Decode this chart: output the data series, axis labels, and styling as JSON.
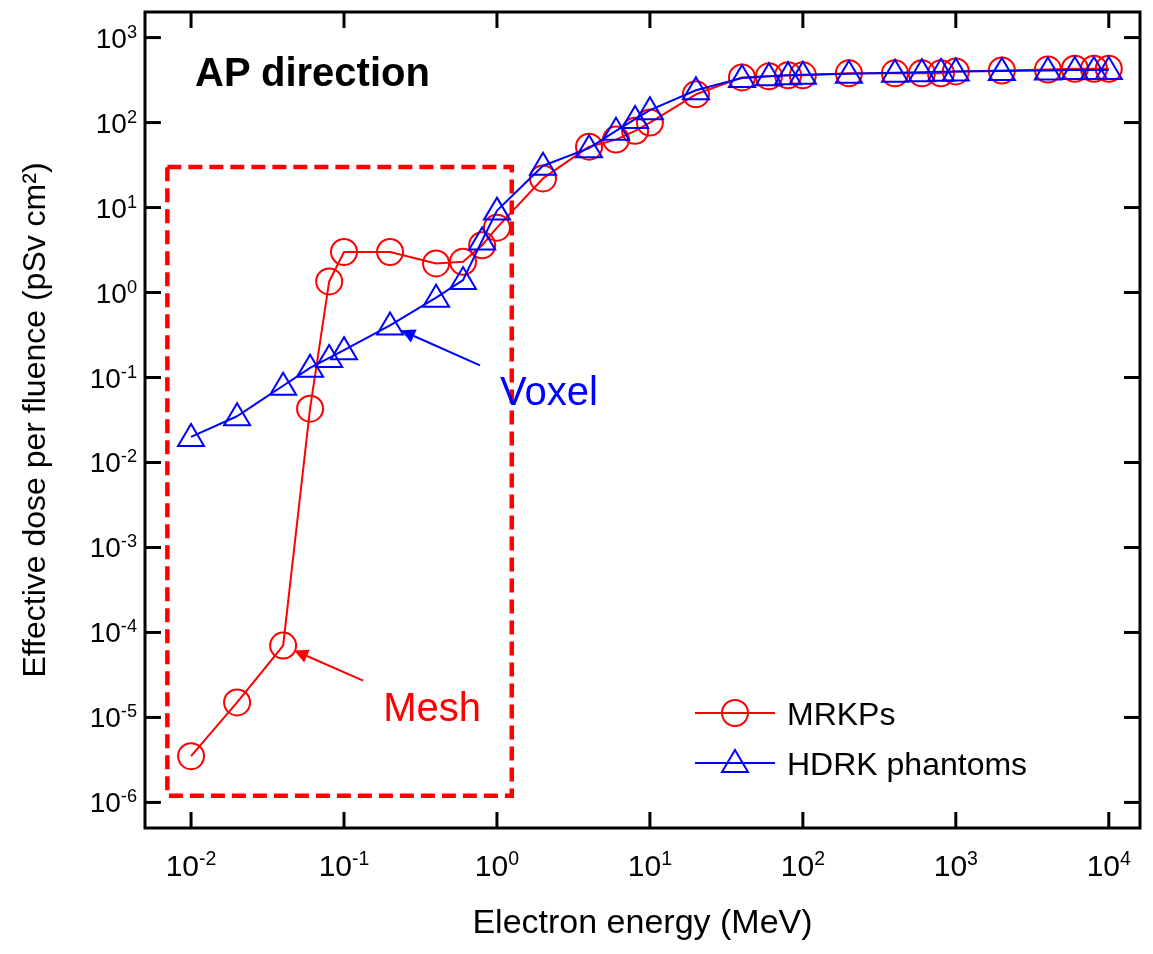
{
  "chart_data": {
    "type": "line",
    "title": "AP direction",
    "xlabel": "Electron energy (MeV)",
    "ylabel": "Effective dose per fluence (pSv cm²)",
    "log": "xy",
    "xlim": [
      0.005,
      16000
    ],
    "ylim": [
      5e-07,
      2000
    ],
    "xticks": [
      {
        "value": 0.01,
        "label": "10$^{-2}$"
      },
      {
        "value": 0.1,
        "label": "10$^{-1}$"
      },
      {
        "value": 1,
        "label": "10$^{0}$"
      },
      {
        "value": 10,
        "label": "10$^{1}$"
      },
      {
        "value": 100,
        "label": "10$^{2}$"
      },
      {
        "value": 1000,
        "label": "10$^{3}$"
      },
      {
        "value": 10000,
        "label": "10$^{4}$"
      }
    ],
    "yticks": [
      {
        "value": 1e-06,
        "label": "10$^{-6}$"
      },
      {
        "value": 1e-05,
        "label": "10$^{-5}$"
      },
      {
        "value": 0.0001,
        "label": "10$^{-4}$"
      },
      {
        "value": 0.001,
        "label": "10$^{-3}$"
      },
      {
        "value": 0.01,
        "label": "10$^{-2}$"
      },
      {
        "value": 0.1,
        "label": "10$^{-1}$"
      },
      {
        "value": 1,
        "label": "10$^{0}$"
      },
      {
        "value": 10,
        "label": "10$^{1}$"
      },
      {
        "value": 100,
        "label": "10$^{2}$"
      },
      {
        "value": 1000,
        "label": "10$^{3}$"
      }
    ],
    "x": [
      0.01,
      0.02,
      0.04,
      0.06,
      0.08,
      0.1,
      0.2,
      0.4,
      0.6,
      0.8,
      1,
      2,
      4,
      6,
      8,
      10,
      20,
      40,
      60,
      80,
      100,
      200,
      400,
      600,
      800,
      1000,
      2000,
      4000,
      6000,
      8000,
      10000
    ],
    "series": [
      {
        "name": "MRKPs",
        "color": "#ff0000",
        "marker": "circle",
        "values": [
          3.5e-06,
          1.5e-05,
          7e-05,
          0.043,
          1.35,
          3.0,
          3.0,
          2.2,
          2.3,
          3.6,
          5.8,
          22,
          52,
          63,
          80,
          100,
          215,
          340,
          350,
          360,
          360,
          380,
          380,
          380,
          380,
          400,
          410,
          420,
          430,
          430,
          430
        ]
      },
      {
        "name": "HDRK phantoms",
        "color": "#0000ff",
        "marker": "triangle",
        "values": [
          0.02,
          0.035,
          0.08,
          0.13,
          0.17,
          0.21,
          0.41,
          0.87,
          1.4,
          4.1,
          9.2,
          31,
          50,
          80,
          110,
          140,
          240,
          335,
          350,
          360,
          365,
          375,
          385,
          390,
          395,
          400,
          405,
          410,
          415,
          415,
          415
        ]
      }
    ],
    "line_style": "solid",
    "legend": "bottom right",
    "annotations": [
      {
        "text": "Mesh",
        "x": 0.04,
        "y": 7e-05
      },
      {
        "text": "Voxel",
        "x": 0.2,
        "y": 0.41
      }
    ]
  }
}
